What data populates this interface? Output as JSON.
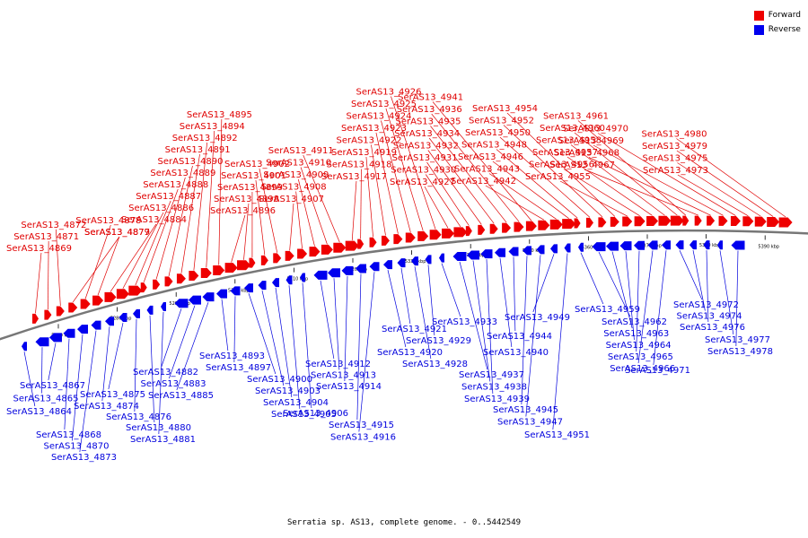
{
  "legend": [
    {
      "label": "Forward",
      "color": "#ee0000"
    },
    {
      "label": "Reverse",
      "color": "#0000ee"
    }
  ],
  "caption": "Serratia sp. AS13, complete genome. - 0..5442549",
  "axis_ticks": [
    "5270 kbp",
    "5280 kbp",
    "5290 kbp",
    "5300 kbp",
    "5310 kbp",
    "5320 kbp",
    "5330 kbp",
    "5340 kbp",
    "5350 kbp",
    "5360 kbp",
    "5370 kbp",
    "5380 kbp",
    "5390 kbp"
  ],
  "forward_genes": [
    "SerAS13_4869",
    "SerAS13_4871",
    "SerAS13_4872",
    "SerAS13_4877",
    "SerAS13_4878",
    "SerAS13_4879",
    "SerAS13_4884",
    "SerAS13_4886",
    "SerAS13_4887",
    "SerAS13_4888",
    "SerAS13_4889",
    "SerAS13_4890",
    "SerAS13_4891",
    "SerAS13_4892",
    "SerAS13_4894",
    "SerAS13_4895",
    "SerAS13_4896",
    "SerAS13_4898",
    "SerAS13_4899",
    "SerAS13_4901",
    "SerAS13_4902",
    "SerAS13_4907",
    "SerAS13_4908",
    "SerAS13_4909",
    "SerAS13_4910",
    "SerAS13_4911",
    "SerAS13_4917",
    "SerAS13_4918",
    "SerAS13_4919",
    "SerAS13_4922",
    "SerAS13_4923",
    "SerAS13_4924",
    "SerAS13_4925",
    "SerAS13_4926",
    "SerAS13_4927",
    "SerAS13_4930",
    "SerAS13_4931",
    "SerAS13_4932",
    "SerAS13_4934",
    "SerAS13_4935",
    "SerAS13_4936",
    "SerAS13_4941",
    "SerAS13_4942",
    "SerAS13_4943",
    "SerAS13_4946",
    "SerAS13_4948",
    "SerAS13_4950",
    "SerAS13_4952",
    "SerAS13_4954",
    "SerAS13_4955",
    "SerAS13_4956",
    "SerAS13_4957",
    "SerAS13_4958",
    "SerAS13_4960",
    "SerAS13_4961",
    "SerAS13_4967",
    "SerAS13_4968",
    "SerAS13_4969",
    "SerAS13_4970",
    "SerAS13_4973",
    "SerAS13_4975",
    "SerAS13_4979",
    "SerAS13_4980"
  ],
  "reverse_genes": [
    "SerAS13_4864",
    "SerAS13_4865",
    "SerAS13_4867",
    "SerAS13_4868",
    "SerAS13_4870",
    "SerAS13_4873",
    "SerAS13_4874",
    "SerAS13_4875",
    "SerAS13_4876",
    "SerAS13_4880",
    "SerAS13_4881",
    "SerAS13_4882",
    "SerAS13_4883",
    "SerAS13_4885",
    "SerAS13_4893",
    "SerAS13_4897",
    "SerAS13_4900",
    "SerAS13_4903",
    "SerAS13_4904",
    "SerAS13_4905",
    "SerAS13_4906",
    "SerAS13_4912",
    "SerAS13_4913",
    "SerAS13_4914",
    "SerAS13_4915",
    "SerAS13_4916",
    "SerAS13_4920",
    "SerAS13_4921",
    "SerAS13_4928",
    "SerAS13_4929",
    "SerAS13_4933",
    "SerAS13_4937",
    "SerAS13_4938",
    "SerAS13_4939",
    "SerAS13_4940",
    "SerAS13_4944",
    "SerAS13_4945",
    "SerAS13_4947",
    "SerAS13_4949",
    "SerAS13_4951",
    "SerAS13_4959",
    "SerAS13_4962",
    "SerAS13_4963",
    "SerAS13_4964",
    "SerAS13_4965",
    "SerAS13_4966",
    "SerAS13_4971",
    "SerAS13_4972",
    "SerAS13_4974",
    "SerAS13_4976",
    "SerAS13_4977",
    "SerAS13_4978"
  ]
}
